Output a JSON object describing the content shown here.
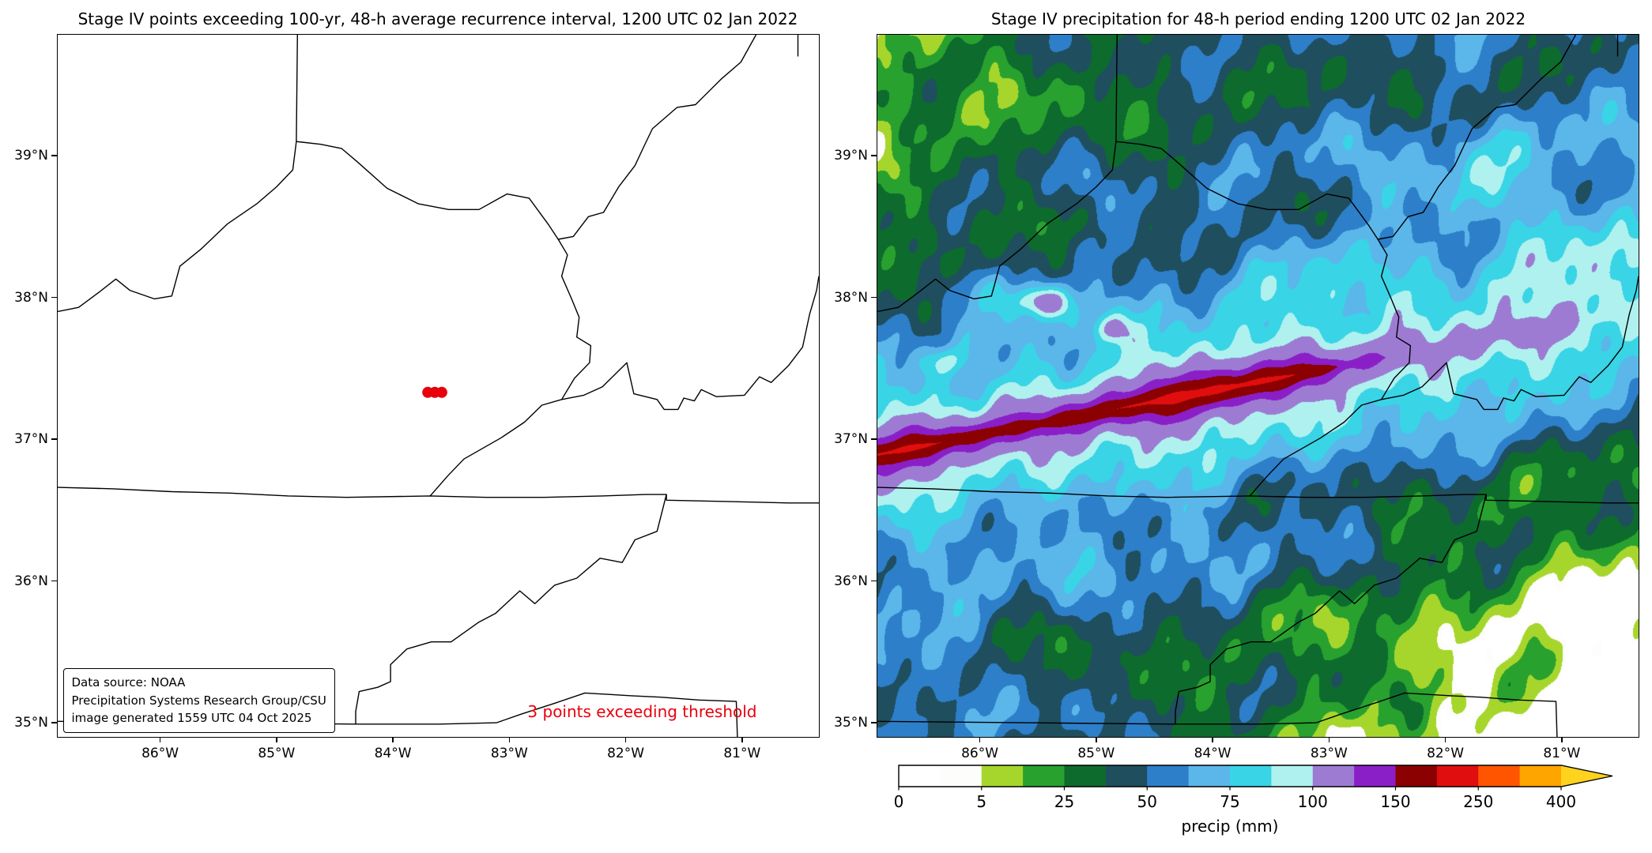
{
  "figure": {
    "background": "#ffffff"
  },
  "panels": {
    "left": {
      "title": "Stage IV points exceeding 100-yr, 48-h average recurrence interval, 1200 UTC 02 Jan 2022",
      "annotation": {
        "text": "3 points exceeding threshold",
        "color": "#e8000b"
      },
      "infobox": {
        "lines": [
          "Data source: NOAA",
          "Precipitation Systems Research Group/CSU",
          "image generated 1559 UTC 04 Oct 2025"
        ]
      },
      "points": {
        "color": "#e8000b",
        "lat": 37.33,
        "lons": [
          -83.7,
          -83.64,
          -83.58
        ]
      }
    },
    "right": {
      "title": "Stage IV precipitation for 48-h period ending 1200 UTC 02 Jan 2022",
      "colorbar": {
        "label": "precip (mm)",
        "ticks": [
          0,
          5,
          25,
          50,
          75,
          100,
          150,
          250,
          400
        ],
        "extend": "max"
      }
    }
  },
  "axes": {
    "lon_min": -86.88,
    "lon_max": -80.34,
    "lat_min": 34.9,
    "lat_max": 39.853,
    "lon_ticks": [
      {
        "value": -86,
        "label": "86°W"
      },
      {
        "value": -85,
        "label": "85°W"
      },
      {
        "value": -84,
        "label": "84°W"
      },
      {
        "value": -83,
        "label": "83°W"
      },
      {
        "value": -82,
        "label": "82°W"
      },
      {
        "value": -81,
        "label": "81°W"
      }
    ],
    "lat_ticks": [
      {
        "value": 35,
        "label": "35°N"
      },
      {
        "value": 36,
        "label": "36°N"
      },
      {
        "value": 37,
        "label": "37°N"
      },
      {
        "value": 38,
        "label": "38°N"
      },
      {
        "value": 39,
        "label": "39°N"
      }
    ]
  },
  "chart_data": {
    "type": "heatmap",
    "units": "mm",
    "description": "48-h Stage IV precipitation ending 1200 UTC 02 Jan 2022 over KY/TN/VA/WV; heavy SW-NE oriented band (100-240 mm, dark red core ~200-240 mm) along ~37.0-37.5N from the west edge to ~83.3W, purple envelope 100-150 mm, broad cyan 75-100 mm fan northeastward, background 25-75 mm blues, light totals 5-25 mm (greens) in the far southeast and northwest corners. Left panel: 3 Stage IV points exceeding the 100-yr 48-h ARI near (-83.6, 37.33).",
    "max_precip_mm": 240,
    "band_axis": [
      [
        -86.95,
        36.88
      ],
      [
        -85.5,
        37.11
      ],
      [
        -84.3,
        37.3
      ],
      [
        -83.3,
        37.45
      ],
      [
        -82.3,
        37.61
      ],
      [
        -81.5,
        37.74
      ]
    ],
    "levels": [
      0,
      2.5,
      5,
      15,
      25,
      37.5,
      50,
      62.5,
      75,
      87.5,
      100,
      125,
      150,
      200,
      250,
      325,
      400
    ],
    "colors": [
      "#ffffff",
      "#fdfefb",
      "#a6d62c",
      "#28a12f",
      "#0d6b2d",
      "#1f4e5f",
      "#2d7fc9",
      "#5bb6ea",
      "#39d4e6",
      "#aff1ee",
      "#9d7bd3",
      "#8a1fc8",
      "#8b0000",
      "#e00e0e",
      "#ff5500",
      "#ffa500"
    ],
    "over_color": "#ffd21e",
    "field": {
      "axis": {
        "lat0": 36.88,
        "lon0": -86.95,
        "slope": 0.157
      },
      "south_ref_lat0": 36.55,
      "bg_base": 55,
      "ped_sigma": 0.72,
      "amp_ctrl": [
        [
          -87.0,
          115
        ],
        [
          -86.45,
          125
        ],
        [
          -86.0,
          95
        ],
        [
          -85.55,
          85
        ],
        [
          -85.1,
          105
        ],
        [
          -84.6,
          125
        ],
        [
          -84.2,
          145
        ],
        [
          -83.85,
          150
        ],
        [
          -83.5,
          125
        ],
        [
          -83.15,
          95
        ],
        [
          -82.85,
          65
        ],
        [
          -82.5,
          45
        ],
        [
          -82.15,
          30
        ],
        [
          -81.8,
          35
        ],
        [
          -81.5,
          45
        ],
        [
          -81.1,
          30
        ],
        [
          -80.8,
          25
        ],
        [
          -80.5,
          35
        ],
        [
          -80.3,
          30
        ]
      ],
      "width_ctrl": [
        [
          -87.0,
          0.1
        ],
        [
          -86.4,
          0.105
        ],
        [
          -85.8,
          0.09
        ],
        [
          -85.0,
          0.1
        ],
        [
          -84.4,
          0.11
        ],
        [
          -83.9,
          0.11
        ],
        [
          -83.4,
          0.1
        ],
        [
          -82.9,
          0.12
        ],
        [
          -82.4,
          0.16
        ],
        [
          -81.9,
          0.22
        ],
        [
          -81.5,
          0.3
        ],
        [
          -81.0,
          0.34
        ],
        [
          -80.3,
          0.38
        ]
      ],
      "ped_ctrl": [
        [
          -87.0,
          35
        ],
        [
          -84.0,
          35
        ],
        [
          -83.0,
          32
        ],
        [
          -82.3,
          25
        ],
        [
          -81.5,
          20
        ],
        [
          -80.8,
          15
        ],
        [
          -80.3,
          12
        ]
      ],
      "blobs": [
        {
          "lon": -85.45,
          "lat": 37.97,
          "a": 52,
          "rx": 0.22,
          "ry": 0.11
        },
        {
          "lon": -84.88,
          "lat": 37.78,
          "a": 34,
          "rx": 0.16,
          "ry": 0.1
        },
        {
          "lon": -86.3,
          "lat": 37.55,
          "a": 28,
          "rx": 0.18,
          "ry": 0.1
        },
        {
          "lon": -81.6,
          "lat": 38.8,
          "a": 20,
          "rx": 1.0,
          "ry": 0.38
        },
        {
          "lon": -80.7,
          "lat": 38.3,
          "a": 16,
          "rx": 0.55,
          "ry": 0.3
        },
        {
          "lon": -83.0,
          "lat": 38.3,
          "a": 12,
          "rx": 0.6,
          "ry": 0.3
        },
        {
          "lon": -86.6,
          "lat": 35.4,
          "a": 14,
          "rx": 0.5,
          "ry": 0.35
        },
        {
          "lon": -84.3,
          "lat": 36.2,
          "a": 16,
          "rx": 0.7,
          "ry": 0.25
        },
        {
          "lon": -86.1,
          "lat": 38.05,
          "a": 18,
          "rx": 0.35,
          "ry": 0.15
        },
        {
          "lon": -85.2,
          "lat": 38.35,
          "a": 14,
          "rx": 0.4,
          "ry": 0.15
        }
      ]
    },
    "borders": [
      [
        [
          -86.88,
          37.9
        ],
        [
          -86.7,
          37.93
        ],
        [
          -86.52,
          38.04
        ],
        [
          -86.38,
          38.13
        ],
        [
          -86.26,
          38.05
        ],
        [
          -86.05,
          37.99
        ],
        [
          -85.9,
          38.01
        ],
        [
          -85.83,
          38.22
        ],
        [
          -85.65,
          38.34
        ],
        [
          -85.42,
          38.52
        ],
        [
          -85.17,
          38.66
        ],
        [
          -85.0,
          38.78
        ],
        [
          -84.86,
          38.9
        ],
        [
          -84.83,
          39.1
        ],
        [
          -84.62,
          39.08
        ],
        [
          -84.44,
          39.05
        ],
        [
          -84.31,
          38.96
        ],
        [
          -84.05,
          38.77
        ],
        [
          -83.78,
          38.66
        ],
        [
          -83.52,
          38.62
        ],
        [
          -83.26,
          38.62
        ],
        [
          -83.02,
          38.73
        ],
        [
          -82.83,
          38.7
        ],
        [
          -82.66,
          38.51
        ],
        [
          -82.58,
          38.41
        ],
        [
          -82.45,
          38.43
        ],
        [
          -82.32,
          38.57
        ],
        [
          -82.19,
          38.6
        ],
        [
          -82.06,
          38.78
        ],
        [
          -81.92,
          38.93
        ],
        [
          -81.84,
          39.07
        ],
        [
          -81.77,
          39.19
        ],
        [
          -81.56,
          39.34
        ],
        [
          -81.4,
          39.36
        ],
        [
          -81.18,
          39.54
        ],
        [
          -81.01,
          39.66
        ],
        [
          -80.88,
          39.853
        ]
      ],
      [
        [
          -84.82,
          39.853
        ],
        [
          -84.83,
          39.1
        ]
      ],
      [
        [
          -80.52,
          39.853
        ],
        [
          -80.52,
          39.7
        ]
      ],
      [
        [
          -82.58,
          38.41
        ],
        [
          -82.5,
          38.3
        ],
        [
          -82.55,
          38.15
        ],
        [
          -82.47,
          38.0
        ],
        [
          -82.4,
          37.86
        ],
        [
          -82.42,
          37.72
        ],
        [
          -82.3,
          37.66
        ],
        [
          -82.31,
          37.54
        ],
        [
          -82.44,
          37.43
        ],
        [
          -82.55,
          37.28
        ],
        [
          -82.72,
          37.24
        ],
        [
          -82.87,
          37.12
        ],
        [
          -83.07,
          37.01
        ],
        [
          -83.39,
          36.86
        ],
        [
          -83.53,
          36.74
        ],
        [
          -83.68,
          36.6
        ]
      ],
      [
        [
          -82.55,
          37.28
        ],
        [
          -82.36,
          37.31
        ],
        [
          -82.2,
          37.37
        ],
        [
          -81.99,
          37.54
        ],
        [
          -81.93,
          37.32
        ],
        [
          -81.73,
          37.28
        ],
        [
          -81.67,
          37.21
        ],
        [
          -81.55,
          37.21
        ],
        [
          -81.5,
          37.29
        ],
        [
          -81.41,
          37.27
        ],
        [
          -81.35,
          37.35
        ],
        [
          -81.22,
          37.3
        ],
        [
          -80.98,
          37.31
        ],
        [
          -80.85,
          37.44
        ],
        [
          -80.75,
          37.4
        ],
        [
          -80.6,
          37.52
        ],
        [
          -80.48,
          37.65
        ],
        [
          -80.42,
          37.88
        ],
        [
          -80.36,
          38.05
        ],
        [
          -80.34,
          38.15
        ]
      ],
      [
        [
          -86.88,
          36.66
        ],
        [
          -86.4,
          36.65
        ],
        [
          -85.9,
          36.63
        ],
        [
          -85.4,
          36.62
        ],
        [
          -84.9,
          36.6
        ],
        [
          -84.4,
          36.59
        ],
        [
          -83.68,
          36.6
        ],
        [
          -83.2,
          36.59
        ],
        [
          -82.7,
          36.59
        ],
        [
          -82.2,
          36.6
        ],
        [
          -81.83,
          36.61
        ],
        [
          -81.65,
          36.61
        ],
        [
          -81.65,
          36.57
        ],
        [
          -81.1,
          36.56
        ],
        [
          -80.6,
          36.55
        ],
        [
          -80.34,
          36.55
        ]
      ],
      [
        [
          -81.65,
          36.61
        ],
        [
          -81.73,
          36.35
        ],
        [
          -81.92,
          36.29
        ],
        [
          -82.03,
          36.13
        ],
        [
          -82.22,
          36.16
        ],
        [
          -82.42,
          36.02
        ],
        [
          -82.61,
          35.97
        ],
        [
          -82.78,
          35.84
        ],
        [
          -82.91,
          35.93
        ],
        [
          -83.12,
          35.77
        ],
        [
          -83.26,
          35.71
        ],
        [
          -83.5,
          35.57
        ],
        [
          -83.67,
          35.57
        ],
        [
          -83.88,
          35.52
        ],
        [
          -84.02,
          35.41
        ],
        [
          -84.02,
          35.29
        ],
        [
          -84.13,
          35.25
        ],
        [
          -84.29,
          35.22
        ],
        [
          -84.32,
          35.08
        ],
        [
          -84.32,
          34.99
        ],
        [
          -83.6,
          34.99
        ],
        [
          -83.11,
          35.0
        ],
        [
          -82.9,
          35.06
        ],
        [
          -82.6,
          35.14
        ],
        [
          -82.35,
          35.21
        ],
        [
          -81.95,
          35.19
        ],
        [
          -81.7,
          35.18
        ],
        [
          -81.37,
          35.16
        ],
        [
          -81.05,
          35.15
        ],
        [
          -81.04,
          34.9
        ]
      ],
      [
        [
          -86.88,
          35.01
        ],
        [
          -85.6,
          35.0
        ],
        [
          -84.32,
          34.99
        ]
      ]
    ]
  }
}
